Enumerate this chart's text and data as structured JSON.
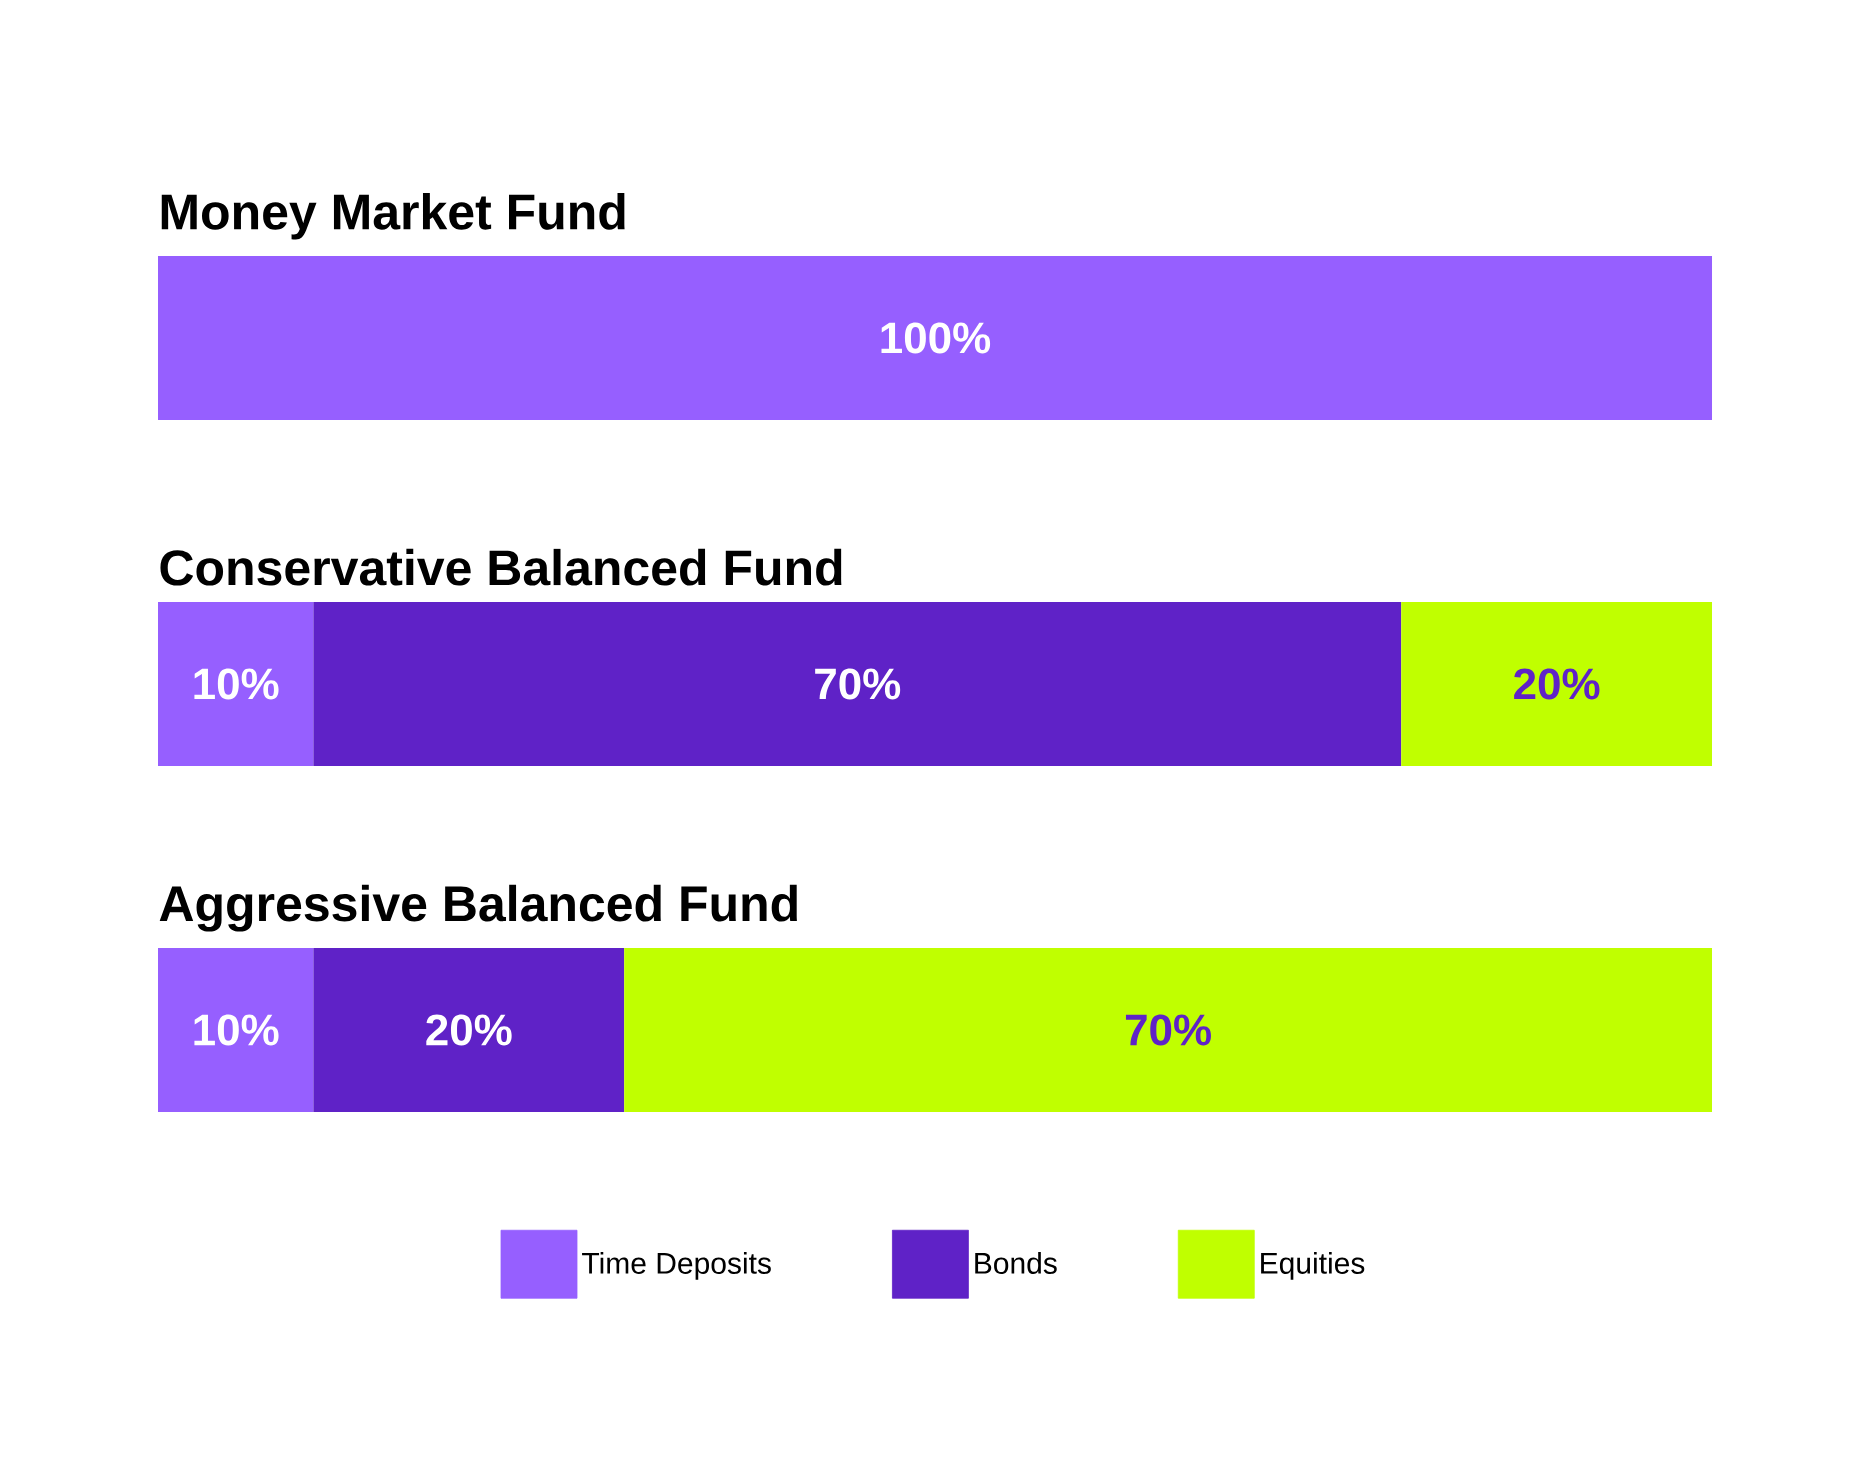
{
  "chart_data": {
    "type": "bar",
    "orientation": "horizontal",
    "stacked": true,
    "legend": "bottom",
    "categories": [
      "Money Market Fund",
      "Conservative Balanced Fund",
      "Aggressive Balanced Fund"
    ],
    "xlim": [
      0,
      100
    ],
    "series": [
      {
        "name": "Time Deposits",
        "color": "#965fff",
        "values": [
          100,
          10,
          10
        ],
        "value_labels": [
          "100%",
          "10%",
          "10%"
        ]
      },
      {
        "name": "Bonds",
        "color": "#5f22c7",
        "values": [
          null,
          70,
          20
        ],
        "value_labels": [
          null,
          "70%",
          "20%"
        ]
      },
      {
        "name": "Equities",
        "color": "#c0ff00",
        "values": [
          null,
          20,
          70
        ],
        "value_labels": [
          null,
          "20%",
          "70%"
        ]
      }
    ]
  }
}
